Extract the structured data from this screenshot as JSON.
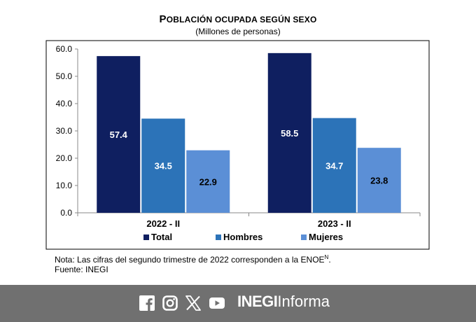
{
  "chart_data": {
    "type": "bar",
    "title_prefix": "P",
    "title_rest": "OBLACIÓN OCUPADA SEGÚN SEXO",
    "subtitle": "(Millones de personas)",
    "categories": [
      "2022 - II",
      "2023 - II"
    ],
    "series": [
      {
        "name": "Total",
        "values": [
          57.4,
          58.5
        ],
        "color": "#0f1f60"
      },
      {
        "name": "Hombres",
        "values": [
          34.5,
          34.7
        ],
        "color": "#2c73b8"
      },
      {
        "name": "Mujeres",
        "values": [
          22.9,
          23.8
        ],
        "color": "#5b8fd6"
      }
    ],
    "yticks": [
      "0.0",
      "10.0",
      "20.0",
      "30.0",
      "40.0",
      "50.0",
      "60.0"
    ],
    "ylim": [
      0,
      60
    ],
    "grid": false,
    "legend_position": "bottom",
    "value_label_colors": [
      "#ffffff",
      "#ffffff",
      "#000000"
    ]
  },
  "notes": {
    "line1": "Nota: Las cifras del segundo trimestre de 2022 corresponden a la ENOE",
    "line1_sup": "N",
    "line1_end": ".",
    "line2": "Fuente: INEGI"
  },
  "footer": {
    "bg_color": "#707070",
    "social_icons": [
      "facebook-icon",
      "instagram-icon",
      "x-icon",
      "youtube-icon"
    ],
    "brand_bold": "INEGI",
    "brand_light": "Informa"
  }
}
